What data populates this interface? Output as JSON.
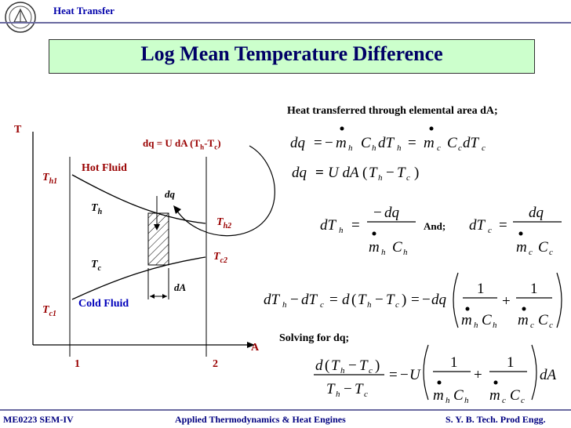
{
  "header": {
    "title": "Heat Transfer"
  },
  "slide": {
    "title": "Log Mean Temperature Difference"
  },
  "diagram": {
    "t_axis": "T",
    "a_axis": "A",
    "th1": "T",
    "th1_sub": "h1",
    "tc1": "T",
    "tc1_sub": "c1",
    "th2": "T",
    "th2_sub": "h2",
    "tc2": "T",
    "tc2_sub": "c2",
    "th": "T",
    "th_sub": "h",
    "tc": "T",
    "tc_sub": "c",
    "hot_fluid": "Hot Fluid",
    "cold_fluid": "Cold Fluid",
    "dq": "dq",
    "dA": "dA",
    "pos1": "1",
    "pos2": "2",
    "dq_eq_main": "dq = U dA (T",
    "dq_eq_h": "h",
    "dq_eq_mid": "-T",
    "dq_eq_c": "c",
    "dq_eq_end": ")"
  },
  "text": {
    "heat_transferred": "Heat transferred through elemental area dA;",
    "and": "And;",
    "solving": "Solving for dq;"
  },
  "footer": {
    "left": "ME0223 SEM-IV",
    "center": "Applied Thermodynamics & Heat Engines",
    "right": "S. Y. B. Tech. Prod Engg."
  },
  "colors": {
    "header_blue": "#0000aa",
    "title_box": "#ccffcc",
    "label_red": "#990000",
    "label_blue": "#0000bb"
  }
}
